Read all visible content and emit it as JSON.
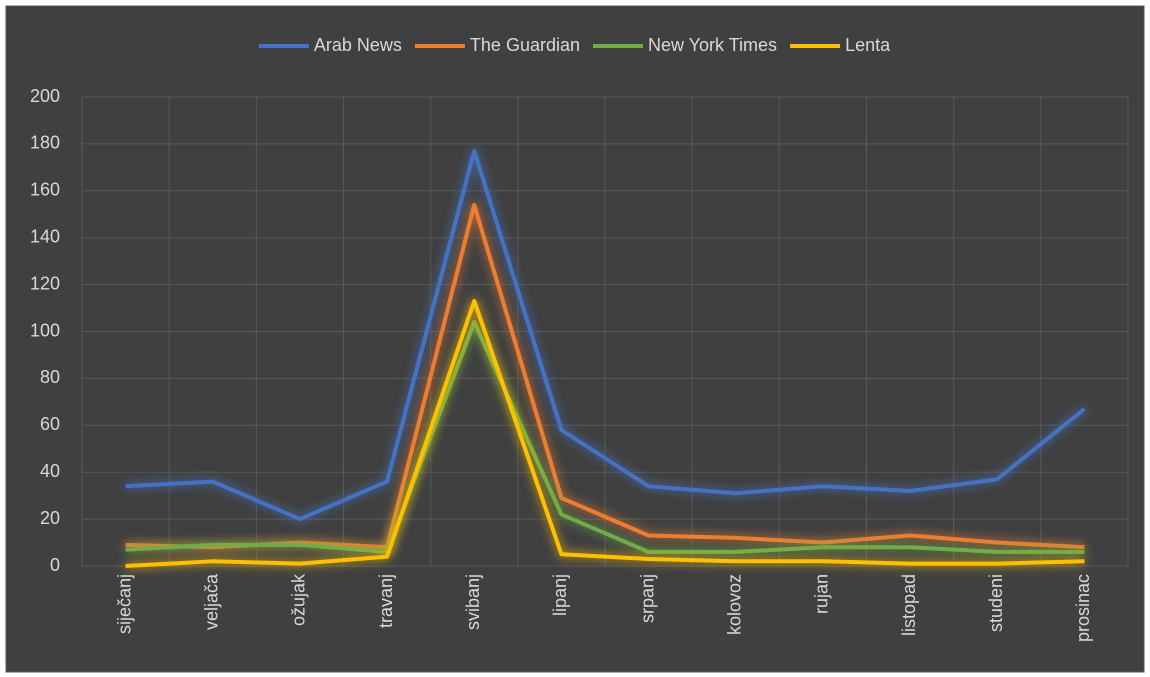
{
  "chart_data": {
    "type": "line",
    "categories": [
      "siječanj",
      "veljača",
      "ožujak",
      "travanj",
      "svibanj",
      "lipanj",
      "srpanj",
      "kolovoz",
      "rujan",
      "listopad",
      "studeni",
      "prosinac"
    ],
    "series": [
      {
        "name": "Arab News",
        "color": "#4472c4",
        "values": [
          34,
          36,
          20,
          36,
          177,
          58,
          34,
          31,
          34,
          32,
          37,
          67
        ]
      },
      {
        "name": "The Guardian",
        "color": "#ed7d31",
        "values": [
          9,
          8,
          10,
          8,
          154,
          29,
          13,
          12,
          10,
          13,
          10,
          8
        ]
      },
      {
        "name": "New York Times",
        "color": "#70ad47",
        "values": [
          7,
          9,
          9,
          6,
          104,
          22,
          6,
          6,
          8,
          8,
          6,
          6
        ]
      },
      {
        "name": "Lenta",
        "color": "#ffc000",
        "values": [
          0,
          2,
          1,
          4,
          113,
          5,
          3,
          2,
          2,
          1,
          1,
          2
        ]
      }
    ],
    "ylim": [
      0,
      200
    ],
    "yticks": [
      0,
      20,
      40,
      60,
      80,
      100,
      120,
      140,
      160,
      180,
      200
    ],
    "grid": true,
    "legend": "top"
  }
}
